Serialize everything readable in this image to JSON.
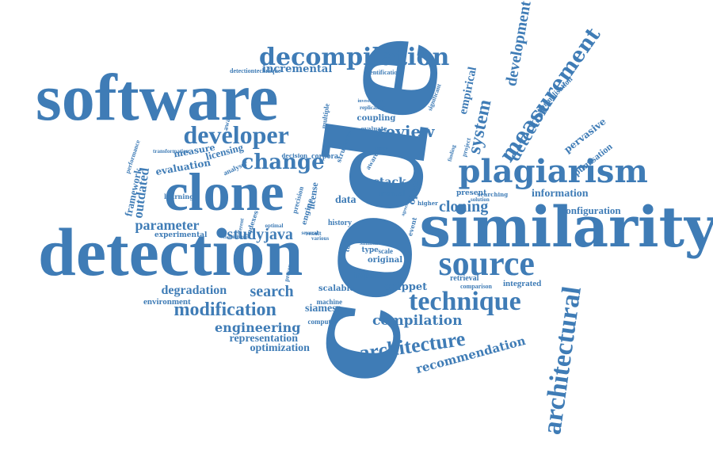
{
  "color": "#3f7cb6",
  "words": [
    {
      "text": "code",
      "rotated": true
    },
    {
      "text": "software",
      "rotated": false
    },
    {
      "text": "detection",
      "rotated": false
    },
    {
      "text": "similarity",
      "rotated": false
    },
    {
      "text": "clone",
      "rotated": false
    },
    {
      "text": "source",
      "rotated": false
    },
    {
      "text": "plagiarism",
      "rotated": false
    },
    {
      "text": "architectural",
      "rotated": true
    },
    {
      "text": "technique",
      "rotated": false
    },
    {
      "text": "decompilation",
      "rotated": false
    },
    {
      "text": "developer",
      "rotated": false
    },
    {
      "text": "architecture",
      "rotated": true
    },
    {
      "text": "measurement",
      "rotated": true
    },
    {
      "text": "modification",
      "rotated": false
    },
    {
      "text": "development",
      "rotated": true
    },
    {
      "text": "change",
      "rotated": false
    },
    {
      "text": "system",
      "rotated": true
    },
    {
      "text": "detector",
      "rotated": true
    },
    {
      "text": "review",
      "rotated": false
    },
    {
      "text": "cloning",
      "rotated": false
    },
    {
      "text": "search",
      "rotated": false
    },
    {
      "text": "recommendation",
      "rotated": true
    },
    {
      "text": "empirical",
      "rotated": true
    },
    {
      "text": "studyjava",
      "rotated": false
    },
    {
      "text": "compilation",
      "rotated": false
    },
    {
      "text": "parameter",
      "rotated": false
    },
    {
      "text": "degradation",
      "rotated": false
    },
    {
      "text": "engineering",
      "rotated": false
    },
    {
      "text": "representation",
      "rotated": false
    },
    {
      "text": "optimization",
      "rotated": false
    },
    {
      "text": "incremental",
      "rotated": false
    },
    {
      "text": "information",
      "rotated": false
    },
    {
      "text": "configuration",
      "rotated": false
    },
    {
      "text": "pervasive",
      "rotated": true
    },
    {
      "text": "optimisation",
      "rotated": true
    },
    {
      "text": "normalisation",
      "rotated": true
    },
    {
      "text": "stack",
      "rotated": false
    },
    {
      "text": "license",
      "rotated": false
    },
    {
      "text": "licensing",
      "rotated": false
    },
    {
      "text": "evaluation",
      "rotated": false
    },
    {
      "text": "outdated",
      "rotated": true
    },
    {
      "text": "framework",
      "rotated": true
    },
    {
      "text": "measure",
      "rotated": false
    },
    {
      "text": "data",
      "rotated": false
    },
    {
      "text": "siamese",
      "rotated": false
    },
    {
      "text": "snippet",
      "rotated": false
    },
    {
      "text": "integrated",
      "rotated": false
    },
    {
      "text": "retrieval",
      "rotated": false
    },
    {
      "text": "scalable",
      "rotated": false
    },
    {
      "text": "environment",
      "rotated": false
    },
    {
      "text": "impact",
      "rotated": false
    },
    {
      "text": "original",
      "rotated": false
    },
    {
      "text": "history",
      "rotated": false
    },
    {
      "text": "manual",
      "rotated": false
    },
    {
      "text": "open",
      "rotated": true
    },
    {
      "text": "awareness",
      "rotated": true
    },
    {
      "text": "multiple",
      "rotated": true
    },
    {
      "text": "experimental",
      "rotated": false
    },
    {
      "text": "computer",
      "rotated": false
    },
    {
      "text": "machine",
      "rotated": false
    },
    {
      "text": "coupling",
      "rotated": false
    },
    {
      "text": "corpora",
      "rotated": false
    },
    {
      "text": "analyser",
      "rotated": true
    },
    {
      "text": "learning",
      "rotated": false
    },
    {
      "text": "detectiontechnique",
      "rotated": false
    },
    {
      "text": "identification",
      "rotated": false
    },
    {
      "text": "present",
      "rotated": false
    },
    {
      "text": "comparison",
      "rotated": false
    },
    {
      "text": "significant",
      "rotated": true
    },
    {
      "text": "indexes",
      "rotated": true
    },
    {
      "text": "precision",
      "rotated": true
    },
    {
      "text": "tool",
      "rotated": true
    },
    {
      "text": "type",
      "rotated": false
    },
    {
      "text": "similar",
      "rotated": false
    },
    {
      "text": "aware",
      "rotated": true
    },
    {
      "text": "structure",
      "rotated": true
    },
    {
      "text": "presence",
      "rotated": true
    },
    {
      "text": "transformation",
      "rotated": false
    },
    {
      "text": "evaluate",
      "rotated": false
    },
    {
      "text": "replication",
      "rotated": false
    },
    {
      "text": "investigation",
      "rotated": false
    },
    {
      "text": "decision",
      "rotated": false
    },
    {
      "text": "project",
      "rotated": true
    },
    {
      "text": "finding",
      "rotated": true
    },
    {
      "text": "engine",
      "rotated": true
    },
    {
      "text": "different",
      "rotated": true
    },
    {
      "text": "solution",
      "rotated": false
    },
    {
      "text": "searching",
      "rotated": false
    },
    {
      "text": "scale",
      "rotated": false
    },
    {
      "text": "several",
      "rotated": false
    },
    {
      "text": "result",
      "rotated": false
    },
    {
      "text": "various",
      "rotated": false
    },
    {
      "text": "classification",
      "rotated": false
    },
    {
      "text": "higher",
      "rotated": false
    },
    {
      "text": "performance",
      "rotated": true
    },
    {
      "text": "optimal",
      "rotated": false
    },
    {
      "text": "event",
      "rotated": true
    },
    {
      "text": "better",
      "rotated": false
    },
    {
      "text": "agreement",
      "rotated": true
    }
  ]
}
